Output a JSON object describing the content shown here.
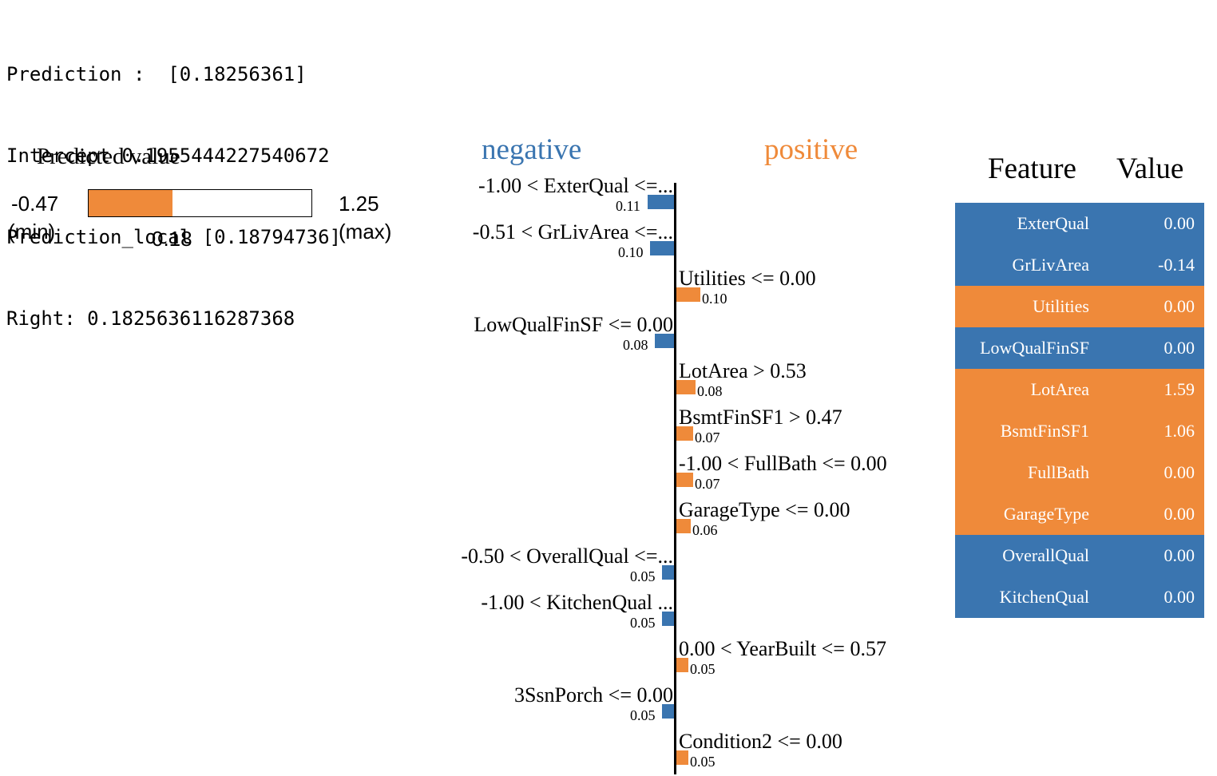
{
  "console": {
    "lines": [
      "Prediction :  [0.18256361]",
      "Intercept 0.1955444227540672",
      "Prediction_local [0.18794736]",
      "Right: 0.1825636116287368"
    ]
  },
  "predicted_value": {
    "title": "Predicted value",
    "min": "-0.47",
    "min_label": "(min)",
    "max": "1.25",
    "max_label": "(max)",
    "value": "0.18",
    "min_num": -0.47,
    "max_num": 1.25,
    "value_num": 0.18,
    "fill_color": "#ef8a3a"
  },
  "explanation": {
    "negative_label": "negative",
    "positive_label": "positive",
    "colors": {
      "negative": "#3a75b0",
      "positive": "#ef8a3a"
    }
  },
  "chart_data": {
    "type": "bar",
    "orientation": "horizontal",
    "categories": [
      "-1.00 < ExterQual <=...",
      "-0.51 < GrLivArea <=...",
      "Utilities <= 0.00",
      "LowQualFinSF <= 0.00",
      "LotArea > 0.53",
      "BsmtFinSF1 > 0.47",
      "-1.00 < FullBath <= 0.00",
      "GarageType <= 0.00",
      "-0.50 < OverallQual <=...",
      "-1.00 < KitchenQual ...",
      "0.00 < YearBuilt <= 0.57",
      "3SsnPorch <= 0.00",
      "Condition2 <= 0.00"
    ],
    "values": [
      -0.11,
      -0.1,
      0.1,
      -0.08,
      0.08,
      0.07,
      0.07,
      0.06,
      -0.05,
      -0.05,
      0.05,
      -0.05,
      0.05
    ],
    "labels": [
      "0.11",
      "0.10",
      "0.10",
      "0.08",
      "0.08",
      "0.07",
      "0.07",
      "0.06",
      "0.05",
      "0.05",
      "0.05",
      "0.05",
      "0.05"
    ],
    "title": "",
    "xlabel": "",
    "ylabel": ""
  },
  "feature_table": {
    "header_feature": "Feature",
    "header_value": "Value",
    "rows": [
      {
        "feature": "ExterQual",
        "value": "0.00",
        "sign": "negative"
      },
      {
        "feature": "GrLivArea",
        "value": "-0.14",
        "sign": "negative"
      },
      {
        "feature": "Utilities",
        "value": "0.00",
        "sign": "positive"
      },
      {
        "feature": "LowQualFinSF",
        "value": "0.00",
        "sign": "negative"
      },
      {
        "feature": "LotArea",
        "value": "1.59",
        "sign": "positive"
      },
      {
        "feature": "BsmtFinSF1",
        "value": "1.06",
        "sign": "positive"
      },
      {
        "feature": "FullBath",
        "value": "0.00",
        "sign": "positive"
      },
      {
        "feature": "GarageType",
        "value": "0.00",
        "sign": "positive"
      },
      {
        "feature": "OverallQual",
        "value": "0.00",
        "sign": "negative"
      },
      {
        "feature": "KitchenQual",
        "value": "0.00",
        "sign": "negative"
      }
    ]
  }
}
